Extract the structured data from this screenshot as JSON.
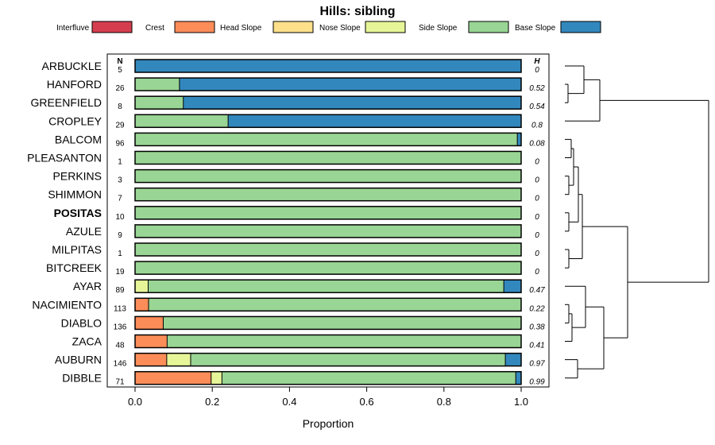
{
  "chart_data": {
    "type": "bar",
    "orientation": "horizontal",
    "stacked": true,
    "title": "Hills: sibling",
    "xlabel": "Proportion",
    "ylabel": "",
    "xlim": [
      0,
      1
    ],
    "xticks": [
      0,
      0.2,
      0.4,
      0.6,
      0.8,
      1
    ],
    "xtick_labels": [
      "0.0",
      "0.2",
      "0.4",
      "0.6",
      "0.8",
      "1.0"
    ],
    "n_header": "N",
    "h_header": "H",
    "legend": [
      {
        "name": "Interfluve",
        "color": "#D53E4F"
      },
      {
        "name": "Crest",
        "color": "#FC8D59"
      },
      {
        "name": "Head Slope",
        "color": "#FEE08B"
      },
      {
        "name": "Nose Slope",
        "color": "#E6F598"
      },
      {
        "name": "Side Slope",
        "color": "#99D594"
      },
      {
        "name": "Base Slope",
        "color": "#3288BD"
      }
    ],
    "categories": [
      "ARBUCKLE",
      "HANFORD",
      "GREENFIELD",
      "CROPLEY",
      "BALCOM",
      "PLEASANTON",
      "PERKINS",
      "SHIMMON",
      "POSITAS",
      "AZULE",
      "MILPITAS",
      "BITCREEK",
      "AYAR",
      "NACIMIENTO",
      "DIABLO",
      "ZACA",
      "AUBURN",
      "DIBBLE"
    ],
    "highlight": "POSITAS",
    "n": [
      "5",
      "26",
      "8",
      "29",
      "96",
      "1",
      "3",
      "7",
      "10",
      "9",
      "1",
      "19",
      "89",
      "113",
      "136",
      "48",
      "146",
      "71"
    ],
    "h": [
      "0",
      "0.52",
      "0.54",
      "0.8",
      "0.08",
      "0",
      "0",
      "0",
      "0",
      "0",
      "0",
      "0",
      "0.47",
      "0.22",
      "0.38",
      "0.41",
      "0.97",
      "0.99"
    ],
    "series": [
      {
        "name": "Interfluve",
        "values": [
          0,
          0,
          0,
          0,
          0,
          0,
          0,
          0,
          0,
          0,
          0,
          0,
          0,
          0,
          0,
          0,
          0,
          0
        ]
      },
      {
        "name": "Crest",
        "values": [
          0,
          0,
          0,
          0,
          0,
          0,
          0,
          0,
          0,
          0,
          0,
          0,
          0,
          0.035,
          0.073,
          0.083,
          0.082,
          0.197
        ]
      },
      {
        "name": "Head Slope",
        "values": [
          0,
          0,
          0,
          0,
          0,
          0,
          0,
          0,
          0,
          0,
          0,
          0,
          0,
          0,
          0,
          0,
          0,
          0
        ]
      },
      {
        "name": "Nose Slope",
        "values": [
          0,
          0,
          0,
          0,
          0,
          0,
          0,
          0,
          0,
          0,
          0,
          0,
          0.034,
          0,
          0,
          0,
          0.062,
          0.028
        ]
      },
      {
        "name": "Side Slope",
        "values": [
          0,
          0.115,
          0.125,
          0.241,
          0.99,
          1,
          1,
          1,
          1,
          1,
          1,
          1,
          0.921,
          0.965,
          0.927,
          0.917,
          0.815,
          0.761
        ]
      },
      {
        "name": "Base Slope",
        "values": [
          1,
          0.885,
          0.875,
          0.759,
          0.01,
          0,
          0,
          0,
          0,
          0,
          0,
          0,
          0.045,
          0,
          0,
          0,
          0.041,
          0.014
        ]
      }
    ]
  }
}
